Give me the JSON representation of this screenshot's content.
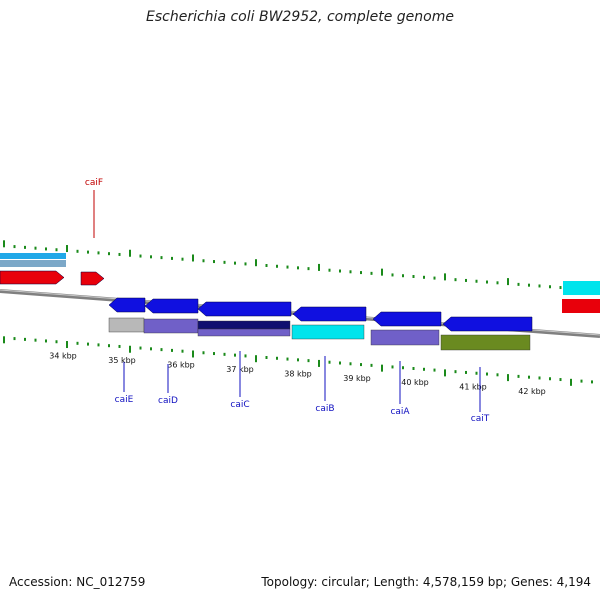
{
  "title": "Escherichia coli BW2952, complete genome",
  "footer": {
    "accession": "Accession: NC_012759",
    "summary": "Topology: circular; Length: 4,578,159 bp; Genes: 4,194"
  },
  "colors": {
    "forward_gene": "#e8000b",
    "reverse_gene": "#1010e0",
    "gc_cyan": "#00e4ec",
    "gc_purple": "#7060c8",
    "gc_gray": "#b8b8b8",
    "gc_navy": "#101070",
    "gc_olive": "#6a8a20",
    "backbone": "#808080",
    "ticks": "#1a8a1a",
    "label_forward": "#c00000",
    "label_reverse": "#1010c0"
  },
  "kbp_labels": [
    "34 kbp",
    "35 kbp",
    "36 kbp",
    "37 kbp",
    "38 kbp",
    "39 kbp",
    "40 kbp",
    "41 kbp",
    "42 kbp"
  ],
  "genes": [
    {
      "name": "caiF",
      "strand": "forward"
    },
    {
      "name": "caiE",
      "strand": "reverse"
    },
    {
      "name": "caiD",
      "strand": "reverse"
    },
    {
      "name": "caiC",
      "strand": "reverse"
    },
    {
      "name": "caiB",
      "strand": "reverse"
    },
    {
      "name": "caiA",
      "strand": "reverse"
    },
    {
      "name": "caiT",
      "strand": "reverse"
    }
  ]
}
